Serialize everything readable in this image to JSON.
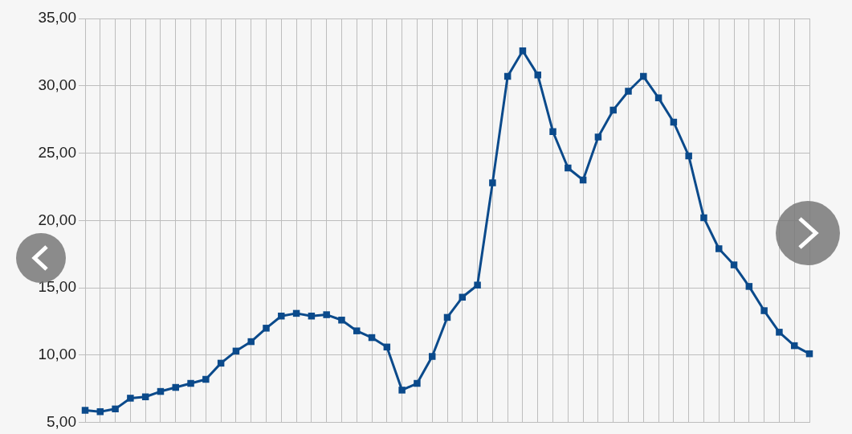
{
  "chart_data": {
    "type": "line",
    "categories": [
      null,
      null,
      null,
      null,
      null,
      null,
      null,
      null,
      null,
      null,
      null,
      null,
      null,
      null,
      null,
      null,
      null,
      null,
      null,
      null,
      null,
      null,
      null,
      null,
      null,
      null,
      null,
      null,
      null,
      null,
      null,
      null,
      null,
      null,
      null,
      null,
      null,
      null,
      null,
      null,
      null,
      null,
      null,
      null,
      null,
      null,
      null,
      null,
      null
    ],
    "series": [
      {
        "color": "#0b4a8b",
        "values": [
          5.9,
          5.8,
          6.0,
          6.8,
          6.9,
          7.3,
          7.6,
          7.9,
          8.2,
          9.4,
          10.3,
          11.0,
          12.0,
          12.9,
          13.1,
          12.9,
          13.0,
          12.6,
          11.8,
          11.3,
          10.6,
          7.4,
          7.9,
          9.9,
          12.8,
          14.3,
          15.2,
          22.8,
          30.7,
          32.6,
          30.8,
          26.6,
          23.9,
          23.0,
          26.2,
          28.2,
          29.6,
          30.7,
          29.1,
          27.3,
          24.8,
          20.2,
          17.9,
          16.7,
          15.1,
          13.3,
          11.7,
          10.7,
          10.1
        ]
      }
    ],
    "ylim": [
      5,
      35
    ],
    "yticks": [
      {
        "value": 5,
        "label": "5,00"
      },
      {
        "value": 10,
        "label": "10,00"
      },
      {
        "value": 15,
        "label": "15,00"
      },
      {
        "value": 20,
        "label": "20,00"
      },
      {
        "value": 25,
        "label": "25,00"
      },
      {
        "value": 30,
        "label": "30,00"
      },
      {
        "value": 35,
        "label": "35,00"
      }
    ],
    "grid": true,
    "legend": false,
    "tick_labels": "y",
    "marker": "square",
    "line_style": "solid"
  }
}
